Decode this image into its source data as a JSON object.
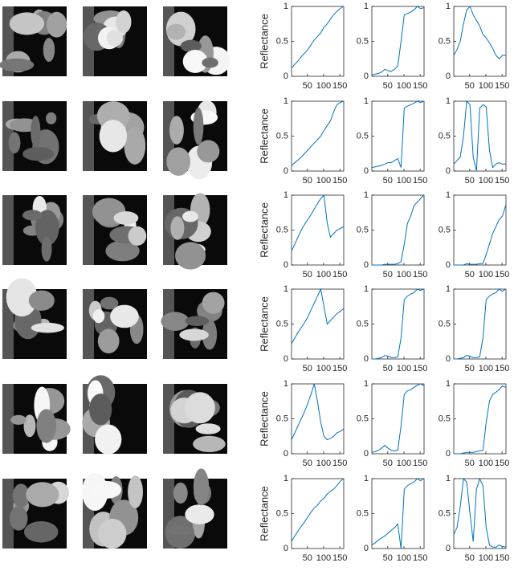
{
  "chart_data": [
    {
      "type": "line",
      "ylabel": "Reflectance",
      "x": [
        1,
        11,
        21,
        31,
        41,
        51,
        61,
        71,
        81,
        91,
        101,
        111,
        121,
        131,
        141,
        151,
        161
      ],
      "values": [
        0.12,
        0.17,
        0.22,
        0.28,
        0.33,
        0.38,
        0.45,
        0.52,
        0.57,
        0.62,
        0.7,
        0.75,
        0.82,
        0.88,
        0.93,
        0.97,
        1.0
      ],
      "color": "#0072bd",
      "xlim": [
        1,
        162
      ],
      "ylim": [
        0,
        1
      ],
      "xticks": [
        50,
        100,
        150
      ],
      "yticks": [
        0,
        0.5,
        1
      ]
    },
    {
      "type": "line",
      "x": [
        1,
        11,
        21,
        31,
        41,
        51,
        61,
        71,
        81,
        91,
        101,
        111,
        121,
        131,
        141,
        151,
        161
      ],
      "values": [
        0.02,
        0.03,
        0.04,
        0.06,
        0.1,
        0.08,
        0.07,
        0.1,
        0.15,
        0.5,
        0.88,
        0.9,
        0.92,
        0.95,
        1.0,
        0.97,
        0.98
      ],
      "color": "#0072bd",
      "xlim": [
        1,
        162
      ],
      "ylim": [
        0,
        1
      ],
      "xticks": [
        50,
        100,
        150
      ],
      "yticks": [
        0,
        0.5,
        1
      ]
    },
    {
      "type": "line",
      "x": [
        1,
        11,
        21,
        31,
        41,
        51,
        61,
        71,
        81,
        91,
        101,
        111,
        121,
        131,
        141,
        151,
        161
      ],
      "values": [
        0.3,
        0.38,
        0.5,
        0.75,
        0.95,
        1.0,
        0.88,
        0.8,
        0.72,
        0.6,
        0.55,
        0.48,
        0.4,
        0.3,
        0.25,
        0.3,
        0.3
      ],
      "color": "#0072bd",
      "xlim": [
        1,
        162
      ],
      "ylim": [
        0,
        1
      ],
      "xticks": [
        50,
        100,
        150
      ],
      "yticks": [
        0,
        0.5,
        1
      ]
    },
    {
      "type": "line",
      "ylabel": "Reflectance",
      "x": [
        1,
        11,
        21,
        31,
        41,
        51,
        61,
        71,
        81,
        91,
        101,
        111,
        121,
        131,
        141,
        151,
        161
      ],
      "values": [
        0.08,
        0.12,
        0.16,
        0.2,
        0.25,
        0.3,
        0.35,
        0.4,
        0.45,
        0.5,
        0.58,
        0.65,
        0.72,
        0.85,
        0.95,
        0.98,
        1.0
      ],
      "color": "#0072bd",
      "xlim": [
        1,
        162
      ],
      "ylim": [
        0,
        1
      ],
      "xticks": [
        50,
        100,
        150
      ],
      "yticks": [
        0,
        0.5,
        1
      ]
    },
    {
      "type": "line",
      "x": [
        1,
        11,
        21,
        31,
        41,
        51,
        61,
        71,
        81,
        91,
        101,
        111,
        121,
        131,
        141,
        151,
        161
      ],
      "values": [
        0.05,
        0.06,
        0.07,
        0.08,
        0.1,
        0.12,
        0.12,
        0.15,
        0.18,
        0.05,
        0.9,
        0.93,
        0.95,
        0.97,
        1.0,
        0.98,
        1.0
      ],
      "color": "#0072bd",
      "xlim": [
        1,
        162
      ],
      "ylim": [
        0,
        1
      ],
      "xticks": [
        50,
        100,
        150
      ],
      "yticks": [
        0,
        0.5,
        1
      ]
    },
    {
      "type": "line",
      "x": [
        1,
        11,
        21,
        31,
        41,
        51,
        61,
        71,
        81,
        91,
        101,
        111,
        121,
        131,
        141,
        151,
        161
      ],
      "values": [
        0.1,
        0.15,
        0.2,
        0.5,
        1.0,
        0.95,
        0.2,
        0.0,
        0.9,
        0.95,
        0.92,
        0.3,
        0.05,
        0.1,
        0.12,
        0.1,
        0.1
      ],
      "color": "#0072bd",
      "xlim": [
        1,
        162
      ],
      "ylim": [
        0,
        1
      ],
      "xticks": [
        50,
        100,
        150
      ],
      "yticks": [
        0,
        0.5,
        1
      ]
    },
    {
      "type": "line",
      "ylabel": "Reflectance",
      "x": [
        1,
        11,
        21,
        31,
        41,
        51,
        61,
        71,
        81,
        91,
        101,
        111,
        121,
        131,
        141,
        151,
        161
      ],
      "values": [
        0.2,
        0.3,
        0.4,
        0.5,
        0.58,
        0.65,
        0.72,
        0.8,
        0.88,
        0.95,
        1.0,
        0.6,
        0.4,
        0.45,
        0.5,
        0.52,
        0.55
      ],
      "color": "#0072bd",
      "xlim": [
        1,
        162
      ],
      "ylim": [
        0,
        1
      ],
      "xticks": [
        50,
        100,
        150
      ],
      "yticks": [
        0,
        0.5,
        1
      ]
    },
    {
      "type": "line",
      "x": [
        1,
        11,
        21,
        31,
        41,
        51,
        61,
        71,
        81,
        91,
        101,
        111,
        121,
        131,
        141,
        151,
        161
      ],
      "values": [
        0,
        0,
        0,
        0,
        0.01,
        0.01,
        0.01,
        0.01,
        0.02,
        0.05,
        0.3,
        0.6,
        0.7,
        0.85,
        0.9,
        0.95,
        1.0
      ],
      "color": "#0072bd",
      "xlim": [
        1,
        162
      ],
      "ylim": [
        0,
        1
      ],
      "xticks": [
        50,
        100,
        150
      ],
      "yticks": [
        0,
        0.5,
        1
      ]
    },
    {
      "type": "line",
      "x": [
        1,
        11,
        21,
        31,
        41,
        51,
        61,
        71,
        81,
        91,
        101,
        111,
        121,
        131,
        141,
        151,
        161
      ],
      "values": [
        0,
        0,
        0,
        0,
        0.02,
        0.01,
        0.01,
        0.01,
        0.02,
        0.02,
        0.15,
        0.3,
        0.45,
        0.55,
        0.65,
        0.7,
        0.85
      ],
      "color": "#0072bd",
      "xlim": [
        1,
        162
      ],
      "ylim": [
        0,
        1
      ],
      "xticks": [
        50,
        100,
        150
      ],
      "yticks": [
        0,
        0.5,
        1
      ]
    },
    {
      "type": "line",
      "ylabel": "Reflectance",
      "x": [
        1,
        11,
        21,
        31,
        41,
        51,
        61,
        71,
        81,
        91,
        101,
        111,
        121,
        131,
        141,
        151,
        161
      ],
      "values": [
        0.22,
        0.3,
        0.38,
        0.45,
        0.52,
        0.6,
        0.7,
        0.8,
        0.9,
        1.0,
        0.75,
        0.5,
        0.55,
        0.6,
        0.65,
        0.68,
        0.72
      ],
      "color": "#0072bd",
      "xlim": [
        1,
        162
      ],
      "ylim": [
        0,
        1
      ],
      "xticks": [
        50,
        100,
        150
      ],
      "yticks": [
        0,
        0.5,
        1
      ]
    },
    {
      "type": "line",
      "x": [
        1,
        11,
        21,
        31,
        41,
        51,
        61,
        71,
        81,
        91,
        101,
        111,
        121,
        131,
        141,
        151,
        161
      ],
      "values": [
        0,
        0,
        0.01,
        0.02,
        0.05,
        0.04,
        0.02,
        0.02,
        0.03,
        0.3,
        0.85,
        0.9,
        0.93,
        0.95,
        1.0,
        0.98,
        1.0
      ],
      "color": "#0072bd",
      "xlim": [
        1,
        162
      ],
      "ylim": [
        0,
        1
      ],
      "xticks": [
        50,
        100,
        150
      ],
      "yticks": [
        0,
        0.5,
        1
      ]
    },
    {
      "type": "line",
      "x": [
        1,
        11,
        21,
        31,
        41,
        51,
        61,
        71,
        81,
        91,
        101,
        111,
        121,
        131,
        141,
        151,
        161
      ],
      "values": [
        0,
        0,
        0.01,
        0.02,
        0.05,
        0.04,
        0.02,
        0.02,
        0.03,
        0.3,
        0.85,
        0.9,
        0.93,
        0.95,
        1.0,
        0.97,
        1.0
      ],
      "color": "#0072bd",
      "xlim": [
        1,
        162
      ],
      "ylim": [
        0,
        1
      ],
      "xticks": [
        50,
        100,
        150
      ],
      "yticks": [
        0,
        0.5,
        1
      ]
    },
    {
      "type": "line",
      "ylabel": "Reflectance",
      "x": [
        1,
        11,
        21,
        31,
        41,
        51,
        61,
        71,
        81,
        91,
        101,
        111,
        121,
        131,
        141,
        151,
        161
      ],
      "values": [
        0.2,
        0.3,
        0.4,
        0.5,
        0.6,
        0.72,
        0.85,
        1.0,
        0.75,
        0.45,
        0.25,
        0.2,
        0.22,
        0.25,
        0.3,
        0.32,
        0.35
      ],
      "color": "#0072bd",
      "xlim": [
        1,
        162
      ],
      "ylim": [
        0,
        1
      ],
      "xticks": [
        50,
        100,
        150
      ],
      "yticks": [
        0,
        0.5,
        1
      ]
    },
    {
      "type": "line",
      "x": [
        1,
        11,
        21,
        31,
        41,
        51,
        61,
        71,
        81,
        91,
        101,
        111,
        121,
        131,
        141,
        151,
        161
      ],
      "values": [
        0.02,
        0.03,
        0.05,
        0.08,
        0.12,
        0.08,
        0.05,
        0.04,
        0.05,
        0.4,
        0.85,
        0.9,
        0.92,
        0.95,
        0.98,
        1.0,
        0.98
      ],
      "color": "#0072bd",
      "xlim": [
        1,
        162
      ],
      "ylim": [
        0,
        1
      ],
      "xticks": [
        50,
        100,
        150
      ],
      "yticks": [
        0,
        0.5,
        1
      ]
    },
    {
      "type": "line",
      "x": [
        1,
        11,
        21,
        31,
        41,
        51,
        61,
        71,
        81,
        91,
        101,
        111,
        121,
        131,
        141,
        151,
        161
      ],
      "values": [
        0,
        0,
        0,
        0.01,
        0.02,
        0.02,
        0.02,
        0.03,
        0.04,
        0.05,
        0.45,
        0.75,
        0.85,
        0.88,
        0.92,
        0.97,
        0.95
      ],
      "color": "#0072bd",
      "xlim": [
        1,
        162
      ],
      "ylim": [
        0,
        1
      ],
      "xticks": [
        50,
        100,
        150
      ],
      "yticks": [
        0,
        0.5,
        1
      ]
    },
    {
      "type": "line",
      "ylabel": "Reflectance",
      "x": [
        1,
        11,
        21,
        31,
        41,
        51,
        61,
        71,
        81,
        91,
        101,
        111,
        121,
        131,
        141,
        151,
        161
      ],
      "values": [
        0.1,
        0.18,
        0.25,
        0.32,
        0.38,
        0.45,
        0.52,
        0.58,
        0.62,
        0.68,
        0.72,
        0.78,
        0.82,
        0.85,
        0.9,
        0.96,
        1.0
      ],
      "color": "#0072bd",
      "xlim": [
        1,
        162
      ],
      "ylim": [
        0,
        1
      ],
      "xticks": [
        50,
        100,
        150
      ],
      "yticks": [
        0,
        0.5,
        1
      ]
    },
    {
      "type": "line",
      "x": [
        1,
        11,
        21,
        31,
        41,
        51,
        61,
        71,
        81,
        91,
        101,
        111,
        121,
        131,
        141,
        151,
        161
      ],
      "values": [
        0.05,
        0.08,
        0.12,
        0.15,
        0.18,
        0.22,
        0.26,
        0.3,
        0.35,
        0.0,
        0.85,
        0.9,
        0.93,
        0.95,
        1.0,
        0.97,
        1.0
      ],
      "color": "#0072bd",
      "xlim": [
        1,
        162
      ],
      "ylim": [
        0,
        1
      ],
      "xticks": [
        50,
        100,
        150
      ],
      "yticks": [
        0,
        0.5,
        1
      ]
    },
    {
      "type": "line",
      "x": [
        1,
        11,
        21,
        31,
        41,
        51,
        61,
        71,
        81,
        91,
        101,
        111,
        121,
        131,
        141,
        151,
        161
      ],
      "values": [
        0.2,
        0.3,
        0.6,
        1.0,
        0.95,
        0.5,
        0.1,
        0.85,
        1.0,
        0.9,
        0.3,
        0.05,
        0.02,
        0.02,
        0.05,
        0.03,
        0.02
      ],
      "color": "#0072bd",
      "xlim": [
        1,
        162
      ],
      "ylim": [
        0,
        1
      ],
      "xticks": [
        50,
        100,
        150
      ],
      "yticks": [
        0,
        0.5,
        1
      ]
    }
  ]
}
